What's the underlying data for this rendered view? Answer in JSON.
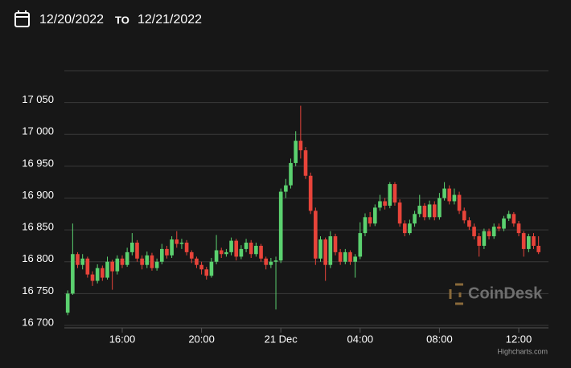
{
  "header": {
    "from": "12/20/2022",
    "to_label": "TO",
    "to": "12/21/2022"
  },
  "chart_data": {
    "type": "candlestick",
    "x": [
      13.25,
      13.5,
      13.75,
      14,
      14.25,
      14.5,
      14.75,
      15,
      15.25,
      15.5,
      15.75,
      16,
      16.25,
      16.5,
      16.75,
      17,
      17.25,
      17.5,
      17.75,
      18,
      18.25,
      18.5,
      18.75,
      19,
      19.25,
      19.5,
      19.75,
      20,
      20.25,
      20.5,
      20.75,
      21,
      21.25,
      21.5,
      21.75,
      22,
      22.25,
      22.5,
      22.75,
      23,
      23.25,
      23.5,
      23.75,
      24,
      24.25,
      24.5,
      24.75,
      25,
      25.25,
      25.5,
      25.75,
      26,
      26.25,
      26.5,
      26.75,
      27,
      27.25,
      27.5,
      27.75,
      28,
      28.25,
      28.5,
      28.75,
      29,
      29.25,
      29.5,
      29.75,
      30,
      30.25,
      30.5,
      30.75,
      31,
      31.25,
      31.5,
      31.75,
      32,
      32.25,
      32.5,
      32.75,
      33,
      33.25,
      33.5,
      33.75,
      34,
      34.25,
      34.5,
      34.75,
      35,
      35.25,
      35.5,
      35.75,
      36,
      36.25,
      36.5,
      36.75,
      37
    ],
    "open": [
      16720,
      16750,
      16812,
      16795,
      16805,
      16780,
      16770,
      16790,
      16775,
      16800,
      16785,
      16805,
      16795,
      16815,
      16830,
      16805,
      16795,
      16810,
      16790,
      16800,
      16820,
      16810,
      16835,
      16828,
      16830,
      16815,
      16805,
      16795,
      16788,
      16778,
      16800,
      16818,
      16812,
      16815,
      16833,
      16808,
      16820,
      16830,
      16812,
      16825,
      16805,
      16795,
      16800,
      16802,
      16910,
      16920,
      16955,
      16990,
      16975,
      16935,
      16880,
      16805,
      16835,
      16795,
      16840,
      16815,
      16800,
      16815,
      16800,
      16808,
      16845,
      16870,
      16860,
      16885,
      16895,
      16888,
      16922,
      16893,
      16860,
      16845,
      16860,
      16875,
      16888,
      16870,
      16890,
      16870,
      16900,
      16915,
      16895,
      16905,
      16880,
      16865,
      16855,
      16840,
      16825,
      16848,
      16840,
      16855,
      16852,
      16868,
      16875,
      16860,
      16845,
      16820,
      16840,
      16825
    ],
    "high": [
      16755,
      16860,
      16815,
      16812,
      16808,
      16785,
      16796,
      16794,
      16808,
      16803,
      16810,
      16810,
      16822,
      16845,
      16834,
      16810,
      16816,
      16814,
      16805,
      16828,
      16825,
      16840,
      16848,
      16836,
      16834,
      16818,
      16808,
      16800,
      16792,
      16806,
      16842,
      16822,
      16820,
      16838,
      16836,
      16826,
      16836,
      16834,
      16830,
      16828,
      16808,
      16806,
      16808,
      16915,
      16930,
      16962,
      17005,
      17045,
      16980,
      16940,
      16885,
      16840,
      16838,
      16848,
      16844,
      16820,
      16820,
      16818,
      16812,
      16862,
      16876,
      16878,
      16890,
      16905,
      16900,
      16925,
      16925,
      16898,
      16865,
      16866,
      16880,
      16905,
      16892,
      16896,
      16895,
      16908,
      16925,
      16920,
      16915,
      16910,
      16885,
      16870,
      16860,
      16845,
      16852,
      16852,
      16860,
      16860,
      16872,
      16880,
      16878,
      16864,
      16848,
      16844,
      16845,
      16840
    ],
    "low": [
      16716,
      16748,
      16790,
      16788,
      16775,
      16762,
      16766,
      16770,
      16772,
      16756,
      16780,
      16790,
      16792,
      16810,
      16800,
      16788,
      16790,
      16786,
      16786,
      16796,
      16805,
      16806,
      16822,
      16820,
      16810,
      16798,
      16790,
      16780,
      16772,
      16775,
      16796,
      16806,
      16808,
      16810,
      16802,
      16804,
      16815,
      16806,
      16808,
      16800,
      16788,
      16790,
      16725,
      16798,
      16900,
      16915,
      16950,
      16962,
      16930,
      16875,
      16795,
      16800,
      16770,
      16790,
      16810,
      16795,
      16796,
      16795,
      16775,
      16804,
      16840,
      16855,
      16856,
      16880,
      16882,
      16884,
      16888,
      16855,
      16840,
      16842,
      16855,
      16870,
      16865,
      16866,
      16865,
      16866,
      16896,
      16890,
      16890,
      16875,
      16860,
      16850,
      16835,
      16808,
      16820,
      16835,
      16836,
      16848,
      16848,
      16864,
      16855,
      16840,
      16808,
      16815,
      16820,
      16812
    ],
    "close": [
      16750,
      16812,
      16795,
      16805,
      16780,
      16770,
      16790,
      16775,
      16800,
      16785,
      16805,
      16795,
      16815,
      16830,
      16805,
      16795,
      16810,
      16790,
      16800,
      16820,
      16810,
      16835,
      16828,
      16830,
      16815,
      16805,
      16795,
      16788,
      16778,
      16800,
      16818,
      16812,
      16815,
      16833,
      16808,
      16820,
      16830,
      16812,
      16825,
      16805,
      16795,
      16800,
      16802,
      16910,
      16920,
      16955,
      16990,
      16975,
      16935,
      16880,
      16805,
      16835,
      16795,
      16840,
      16815,
      16800,
      16815,
      16800,
      16808,
      16845,
      16870,
      16860,
      16885,
      16895,
      16888,
      16922,
      16893,
      16860,
      16845,
      16860,
      16875,
      16888,
      16870,
      16890,
      16870,
      16900,
      16915,
      16895,
      16905,
      16880,
      16865,
      16855,
      16840,
      16825,
      16848,
      16840,
      16855,
      16852,
      16868,
      16875,
      16860,
      16845,
      16820,
      16840,
      16825,
      16815
    ],
    "up_color": "#5bd16f",
    "down_color": "#e8443a",
    "xlim": [
      13.08,
      37.5
    ],
    "xticks": [
      {
        "value": 16,
        "label": "16:00"
      },
      {
        "value": 20,
        "label": "20:00"
      },
      {
        "value": 24,
        "label": "21 Dec"
      },
      {
        "value": 28,
        "label": "04:00"
      },
      {
        "value": 32,
        "label": "08:00"
      },
      {
        "value": 36,
        "label": "12:00"
      }
    ],
    "ylim": [
      16700,
      17100
    ],
    "yticks": [
      {
        "value": 16700,
        "label": "16 700"
      },
      {
        "value": 16750,
        "label": "16 750"
      },
      {
        "value": 16800,
        "label": "16 800"
      },
      {
        "value": 16850,
        "label": "16 850"
      },
      {
        "value": 16900,
        "label": "16 900"
      },
      {
        "value": 16950,
        "label": "16 950"
      },
      {
        "value": 17000,
        "label": "17 000"
      },
      {
        "value": 17050,
        "label": "17 050"
      }
    ],
    "grid": true,
    "watermark": "CoinDesk",
    "credits": "Highcharts.com"
  }
}
